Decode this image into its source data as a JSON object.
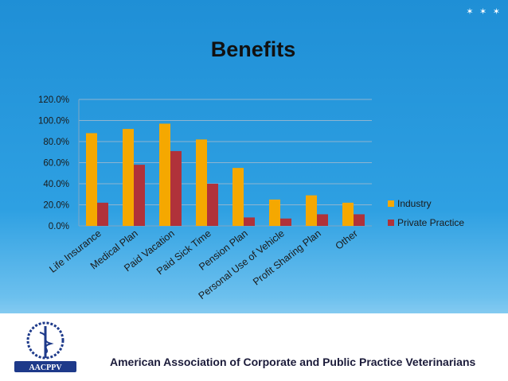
{
  "slide": {
    "stars": "✶ ✶ ✶",
    "footer_org": "American Association of Corporate and Public Practice Veterinarians",
    "logo_text": "AACPPV"
  },
  "chart_data": {
    "type": "bar",
    "title": "Benefits",
    "categories": [
      "Life Insurance",
      "Medical Plan",
      "Paid Vacation",
      "Paid Sick Time",
      "Pension Plan",
      "Personal Use of Vehicle",
      "Profit Sharing Plan",
      "Other"
    ],
    "series": [
      {
        "name": "Industry",
        "color": "#f5a800",
        "values": [
          88,
          92,
          97,
          82,
          55,
          25,
          29,
          22
        ]
      },
      {
        "name": "Private Practice",
        "color": "#b0323a",
        "values": [
          22,
          58,
          71,
          40,
          8,
          7,
          11,
          11
        ]
      }
    ],
    "ylim": [
      0,
      120
    ],
    "yticks": [
      "0.0%",
      "20.0%",
      "40.0%",
      "60.0%",
      "80.0%",
      "100.0%",
      "120.0%"
    ],
    "grid": true,
    "legend": "right"
  }
}
